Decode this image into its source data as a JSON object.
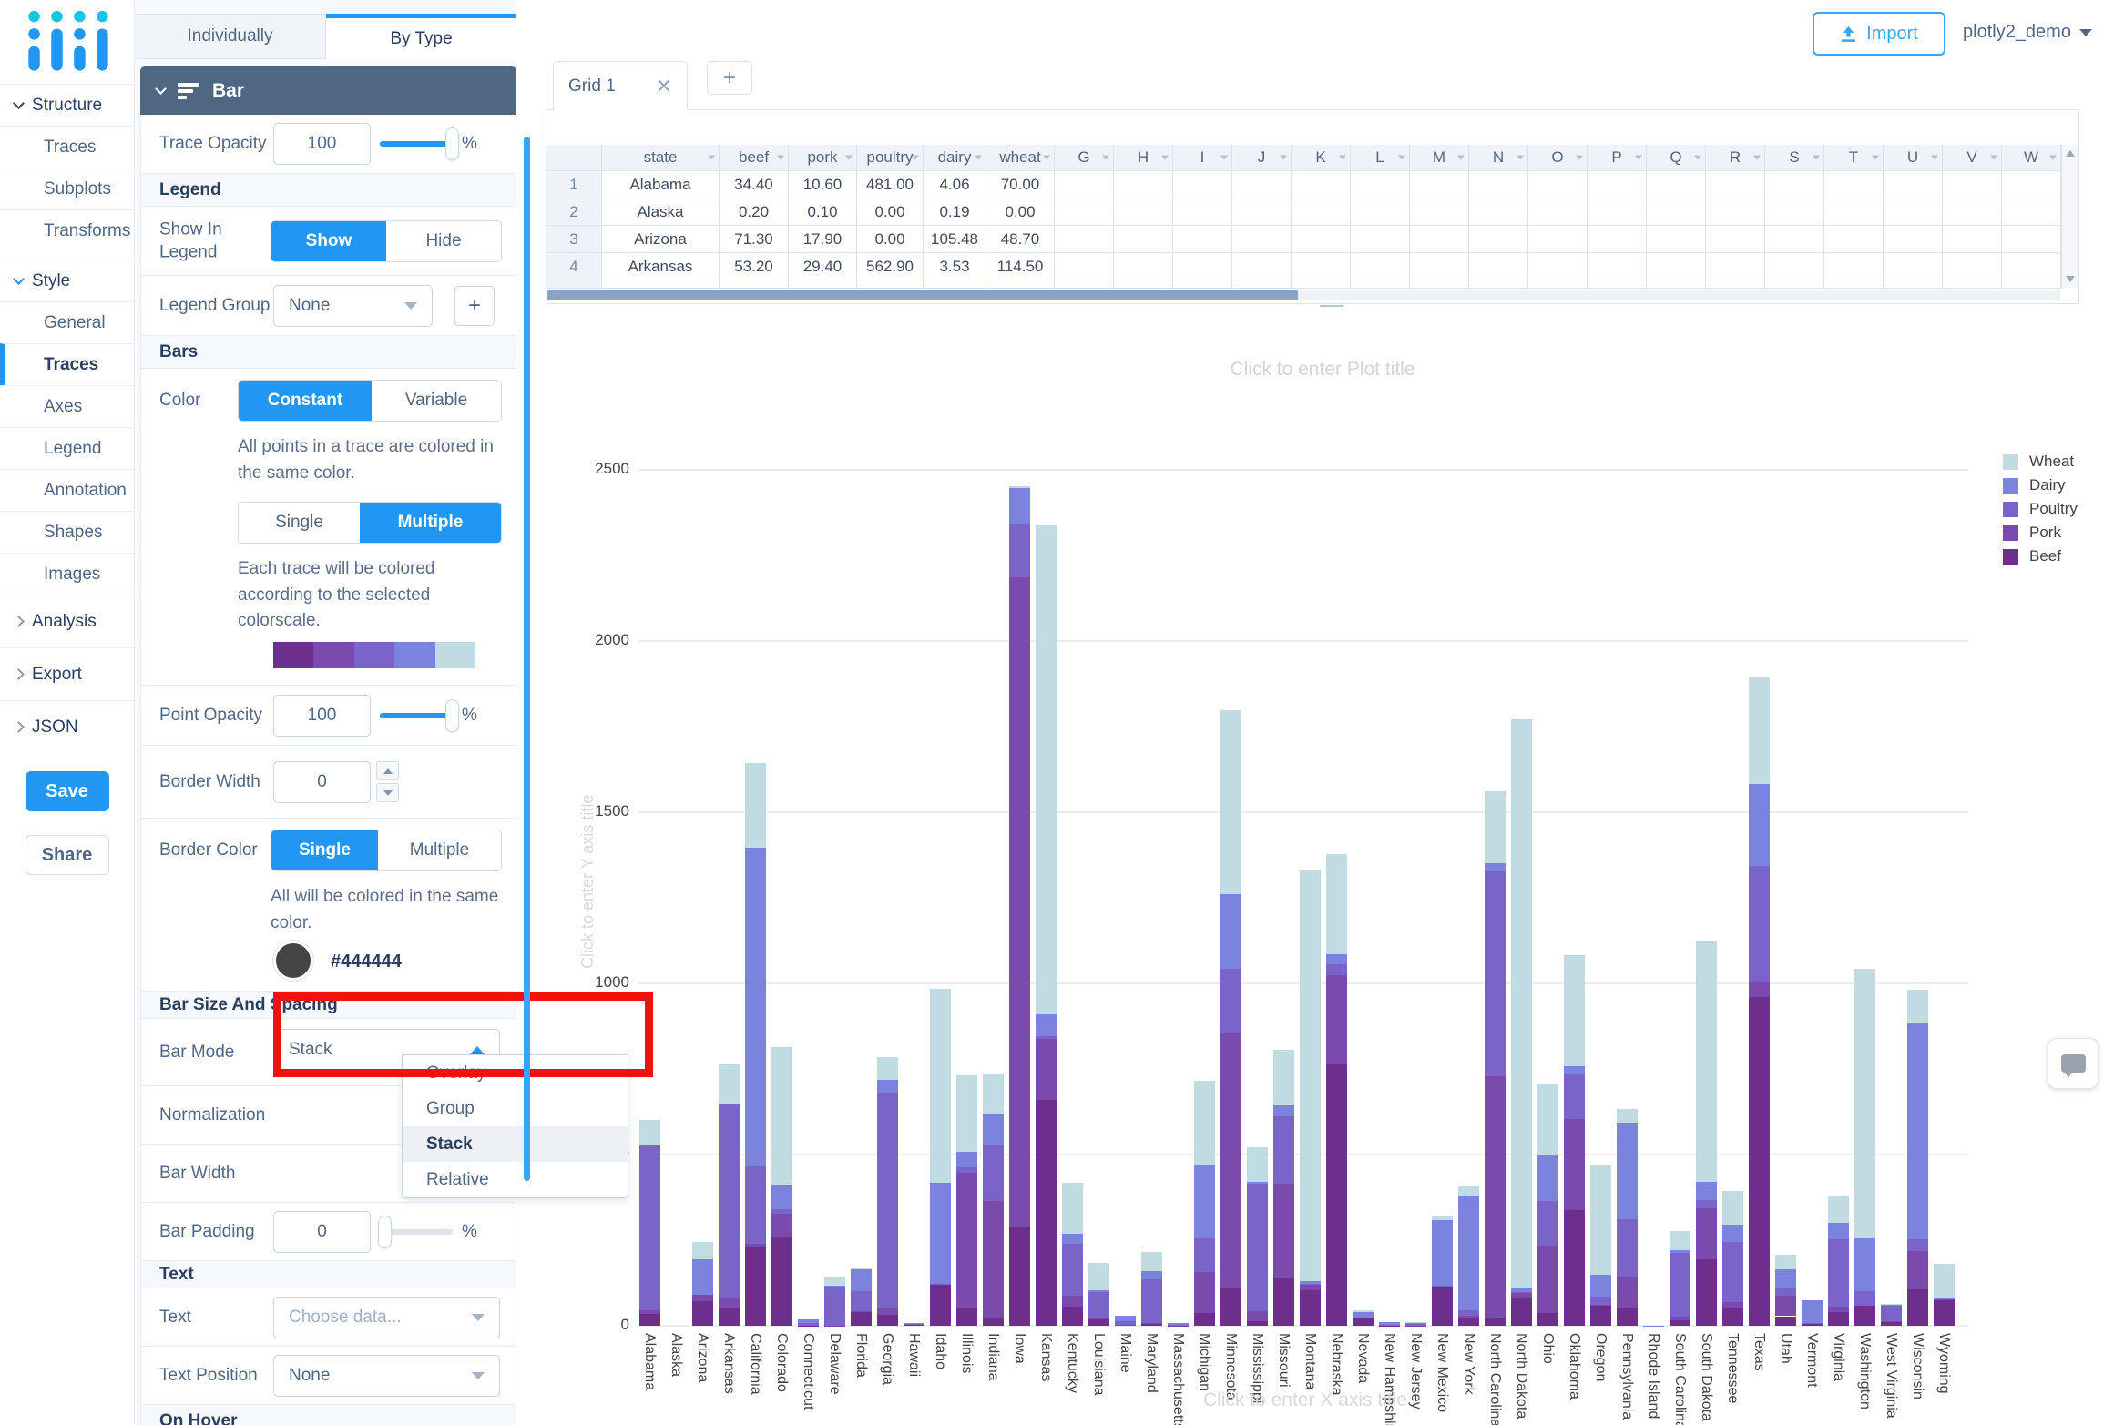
{
  "sidebar": {
    "sections": [
      {
        "label": "Structure",
        "expanded": true,
        "chevron_color": "dark",
        "items": [
          {
            "label": "Traces",
            "active": false
          },
          {
            "label": "Subplots",
            "active": false
          },
          {
            "label": "Transforms",
            "active": false
          }
        ]
      },
      {
        "label": "Style",
        "expanded": true,
        "chevron_color": "blue",
        "items": [
          {
            "label": "General",
            "active": false
          },
          {
            "label": "Traces",
            "active": true
          },
          {
            "label": "Axes",
            "active": false
          },
          {
            "label": "Legend",
            "active": false
          },
          {
            "label": "Annotation",
            "active": false
          },
          {
            "label": "Shapes",
            "active": false
          },
          {
            "label": "Images",
            "active": false
          }
        ]
      },
      {
        "label": "Analysis",
        "expanded": false,
        "items": []
      },
      {
        "label": "Export",
        "expanded": false,
        "items": []
      },
      {
        "label": "JSON",
        "expanded": false,
        "items": []
      }
    ],
    "save_label": "Save",
    "share_label": "Share"
  },
  "style_panel": {
    "tabs": {
      "individually": "Individually",
      "by_type": "By Type"
    },
    "active_tab": "By Type",
    "fold_title": "Bar",
    "trace_opacity": {
      "label": "Trace Opacity",
      "value": "100",
      "unit": "%"
    },
    "legend_header": "Legend",
    "show_in_legend": {
      "label": "Show In Legend",
      "on": "Show",
      "off": "Hide",
      "selected": "Show"
    },
    "legend_group": {
      "label": "Legend Group",
      "value": "None",
      "add_label": "+"
    },
    "bars_header": "Bars",
    "color": {
      "label": "Color",
      "opt1": "Constant",
      "opt2": "Variable",
      "selected": "Constant",
      "help": "All points in a trace are colored in the same color."
    },
    "color_mode": {
      "opt1": "Single",
      "opt2": "Multiple",
      "selected": "Multiple",
      "help": "Each trace will be colored according to the selected colorscale."
    },
    "colorscale": [
      "#6e2e8c",
      "#7b4aad",
      "#7a64ca",
      "#7b83de",
      "#c1dbe2"
    ],
    "point_opacity": {
      "label": "Point Opacity",
      "value": "100",
      "unit": "%"
    },
    "border_width": {
      "label": "Border Width",
      "value": "0"
    },
    "border_color": {
      "label": "Border Color",
      "opt1": "Single",
      "opt2": "Multiple",
      "selected": "Single",
      "help": "All will be colored in the same color.",
      "hex": "#444444",
      "swatch": "#444444"
    },
    "bar_size_header": "Bar Size And Spacing",
    "bar_mode": {
      "label": "Bar Mode",
      "value": "Stack",
      "options": [
        "Overlay",
        "Group",
        "Stack",
        "Relative"
      ],
      "open": true
    },
    "normalization": {
      "label": "Normalization"
    },
    "bar_width": {
      "label": "Bar Width"
    },
    "bar_padding": {
      "label": "Bar Padding",
      "value": "0",
      "unit": "%"
    },
    "text_header": "Text",
    "text_row": {
      "label": "Text",
      "placeholder": "Choose data..."
    },
    "text_position": {
      "label": "Text Position",
      "value": "None"
    },
    "on_hover_header": "On Hover"
  },
  "topbar": {
    "import_label": "Import",
    "filename": "plotly2_demo"
  },
  "grid": {
    "tab_label": "Grid 1",
    "add_tab_label": "+",
    "columns": [
      "state",
      "beef",
      "pork",
      "poultry",
      "dairy",
      "wheat"
    ],
    "letter_columns": [
      "G",
      "H",
      "I",
      "J",
      "K",
      "L",
      "M",
      "N",
      "O",
      "P",
      "Q",
      "R",
      "S",
      "T",
      "U",
      "V",
      "W"
    ],
    "rows": [
      {
        "n": "1",
        "cells": [
          "Alabama",
          "34.40",
          "10.60",
          "481.00",
          "4.06",
          "70.00"
        ]
      },
      {
        "n": "2",
        "cells": [
          "Alaska",
          "0.20",
          "0.10",
          "0.00",
          "0.19",
          "0.00"
        ]
      },
      {
        "n": "3",
        "cells": [
          "Arizona",
          "71.30",
          "17.90",
          "0.00",
          "105.48",
          "48.70"
        ]
      },
      {
        "n": "4",
        "cells": [
          "Arkansas",
          "53.20",
          "29.40",
          "562.90",
          "3.53",
          "114.50"
        ]
      }
    ]
  },
  "chart_data": {
    "type": "bar",
    "barmode": "stack",
    "title_placeholder": "Click to enter Plot title",
    "xaxis_title_placeholder": "Click to enter X axis title",
    "yaxis_title_placeholder": "Click to enter Y axis title",
    "ylim": [
      0,
      2500
    ],
    "ytick_step": 500,
    "grid": true,
    "legend_position": "top-right",
    "categories": [
      "Alabama",
      "Alaska",
      "Arizona",
      "Arkansas",
      "California",
      "Colorado",
      "Connecticut",
      "Delaware",
      "Florida",
      "Georgia",
      "Hawaii",
      "Idaho",
      "Illinois",
      "Indiana",
      "Iowa",
      "Kansas",
      "Kentucky",
      "Louisiana",
      "Maine",
      "Maryland",
      "Massachusetts",
      "Michigan",
      "Minnesota",
      "Mississippi",
      "Missouri",
      "Montana",
      "Nebraska",
      "Nevada",
      "New Hampshire",
      "New Jersey",
      "New Mexico",
      "New York",
      "North Carolina",
      "North Dakota",
      "Ohio",
      "Oklahoma",
      "Oregon",
      "Pennsylvania",
      "Rhode Island",
      "South Carolina",
      "South Dakota",
      "Tennessee",
      "Texas",
      "Utah",
      "Vermont",
      "Virginia",
      "Washington",
      "West Virginia",
      "Wisconsin",
      "Wyoming"
    ],
    "series": [
      {
        "name": "Beef",
        "color": "#6e2e8c",
        "values": [
          34.4,
          0.2,
          71.3,
          53.2,
          228.7,
          261.4,
          1.1,
          0.4,
          42.6,
          31.0,
          4.0,
          119.8,
          53.7,
          21.9,
          289.8,
          659.3,
          54.8,
          19.8,
          1.4,
          5.6,
          0.6,
          37.7,
          112.3,
          12.8,
          137.2,
          105.0,
          762.2,
          21.8,
          0.6,
          0.8,
          117.2,
          22.2,
          24.8,
          78.5,
          36.2,
          337.6,
          58.8,
          50.9,
          0.1,
          15.2,
          193.5,
          51.1,
          961.0,
          27.9,
          6.2,
          39.5,
          59.2,
          12.0,
          107.3,
          75.1
        ]
      },
      {
        "name": "Pork",
        "color": "#7b4aad",
        "values": [
          10.6,
          0.1,
          17.9,
          29.4,
          11.1,
          66.0,
          0.1,
          0.6,
          0.9,
          18.9,
          0.7,
          0.0,
          394.0,
          341.9,
          1895.6,
          179.4,
          34.2,
          0.8,
          0.5,
          3.1,
          0.6,
          118.1,
          740.4,
          30.4,
          277.3,
          16.8,
          262.5,
          0.2,
          0.2,
          0.4,
          0.1,
          5.8,
          702.8,
          16.1,
          199.1,
          265.3,
          1.4,
          91.3,
          0.1,
          10.9,
          149.7,
          17.6,
          42.7,
          59.0,
          0.2,
          16.9,
          0.0,
          0.3,
          110.4,
          0.9
        ]
      },
      {
        "name": "Poultry",
        "color": "#7a64ca",
        "values": [
          481.0,
          0.0,
          0.0,
          562.9,
          225.4,
          14.0,
          6.9,
          114.7,
          56.9,
          630.4,
          1.3,
          2.4,
          14.0,
          165.6,
          155.6,
          6.4,
          151.3,
          77.2,
          10.4,
          127.0,
          0.8,
          98.3,
          189.2,
          370.8,
          196.1,
          1.8,
          31.4,
          0.0,
          1.8,
          4.6,
          0.3,
          17.7,
          598.5,
          4.7,
          129.9,
          131.1,
          24.3,
          169.8,
          0.2,
          186.5,
          24.0,
          176.9,
          339.2,
          23.1,
          0.9,
          196.4,
          41.9,
          45.4,
          34.5,
          0.2
        ]
      },
      {
        "name": "Dairy",
        "color": "#7b83de",
        "values": [
          4.06,
          0.19,
          105.48,
          3.53,
          929.95,
          71.94,
          9.49,
          2.3,
          66.31,
          38.38,
          1.16,
          294.6,
          45.82,
          89.7,
          107.0,
          65.45,
          28.27,
          6.9,
          16.18,
          24.81,
          5.81,
          214.82,
          218.05,
          5.45,
          34.26,
          6.82,
          30.07,
          16.57,
          7.46,
          3.37,
          191.01,
          331.8,
          24.9,
          8.72,
          134.57,
          24.35,
          63.66,
          280.87,
          0.52,
          7.62,
          53.49,
          48.39,
          240.55,
          54.33,
          65.98,
          47.85,
          154.18,
          3.9,
          633.6,
          2.89
        ]
      },
      {
        "name": "Wheat",
        "color": "#c1dbe2",
        "values": [
          70.0,
          0.0,
          48.7,
          114.5,
          249.3,
          400.5,
          0.0,
          22.9,
          1.8,
          65.4,
          0.0,
          568.2,
          223.8,
          114.0,
          3.1,
          1426.5,
          149.3,
          78.9,
          0.0,
          55.8,
          0.0,
          247.0,
          538.1,
          102.2,
          161.7,
          1198.1,
          292.3,
          5.4,
          0.0,
          1.0,
          11.9,
          29.9,
          209.1,
          1664.5,
          207.4,
          324.8,
          320.3,
          41.0,
          0.0,
          55.3,
          704.5,
          100.0,
          309.7,
          42.8,
          0.0,
          77.5,
          786.3,
          1.6,
          96.7,
          100.9
        ]
      }
    ]
  }
}
